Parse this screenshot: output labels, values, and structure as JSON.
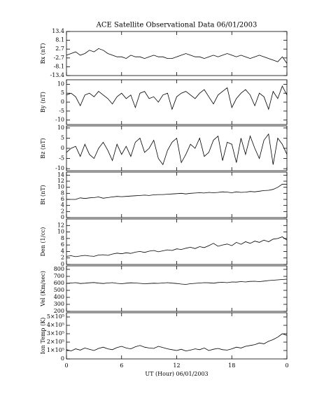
{
  "chart_data": [
    {
      "type": "line",
      "title": "ACE Satellite Observational Data   06/01/2003",
      "ylabel": "Bx (nT)",
      "color": "#000000",
      "x": [
        0,
        0.5,
        1,
        1.5,
        2,
        2.5,
        3,
        3.5,
        4,
        4.5,
        5,
        5.5,
        6,
        6.5,
        7,
        7.5,
        8,
        8.5,
        9,
        9.5,
        10,
        10.5,
        11,
        11.5,
        12,
        12.5,
        13,
        13.5,
        14,
        14.5,
        15,
        15.5,
        16,
        16.5,
        17,
        17.5,
        18,
        18.5,
        19,
        19.5,
        20,
        20.5,
        21,
        21.5,
        22,
        22.5,
        23,
        23.5,
        24
      ],
      "values": [
        -1,
        0,
        1,
        -1,
        0,
        2,
        1,
        3,
        2,
        0,
        -1,
        -2,
        -2,
        -3,
        -1,
        -2,
        -2,
        -3,
        -2,
        -1,
        -2,
        -2,
        -3,
        -3,
        -2,
        -1,
        0,
        -1,
        -2,
        -2,
        -3,
        -2,
        -1,
        -2,
        -1,
        0,
        -1,
        -2,
        -1,
        -2,
        -3,
        -2,
        -1,
        -2,
        -3,
        -4,
        -5,
        -2,
        -6
      ],
      "xlim": [
        0,
        24
      ],
      "ylim": [
        -13.4,
        13.4
      ],
      "yticks": [
        13.4,
        8.1,
        2.7,
        -2.7,
        -8.1,
        -13.4
      ]
    },
    {
      "type": "line",
      "ylabel": "By (nT)",
      "color": "#000000",
      "x": [
        0,
        0.5,
        1,
        1.5,
        2,
        2.5,
        3,
        3.5,
        4,
        4.5,
        5,
        5.5,
        6,
        6.5,
        7,
        7.5,
        8,
        8.5,
        9,
        9.5,
        10,
        10.5,
        11,
        11.5,
        12,
        12.5,
        13,
        13.5,
        14,
        14.5,
        15,
        15.5,
        16,
        16.5,
        17,
        17.5,
        18,
        18.5,
        19,
        19.5,
        20,
        20.5,
        21,
        21.5,
        22,
        22.5,
        23,
        23.5,
        24
      ],
      "values": [
        4,
        5,
        3,
        -2,
        4,
        5,
        3,
        6,
        4,
        2,
        -1,
        3,
        5,
        2,
        4,
        -3,
        5,
        6,
        2,
        3,
        0,
        4,
        5,
        -4,
        3,
        5,
        6,
        4,
        2,
        5,
        7,
        3,
        -1,
        4,
        6,
        8,
        -3,
        2,
        5,
        7,
        4,
        -2,
        5,
        3,
        -4,
        6,
        2,
        9,
        4
      ],
      "xlim": [
        0,
        24
      ],
      "ylim": [
        -12.5,
        12.5
      ],
      "yticks": [
        10,
        5,
        0,
        -5,
        -10
      ]
    },
    {
      "type": "line",
      "ylabel": "Bz (nT)",
      "color": "#000000",
      "x": [
        0,
        0.5,
        1,
        1.5,
        2,
        2.5,
        3,
        3.5,
        4,
        4.5,
        5,
        5.5,
        6,
        6.5,
        7,
        7.5,
        8,
        8.5,
        9,
        9.5,
        10,
        10.5,
        11,
        11.5,
        12,
        12.5,
        13,
        13.5,
        14,
        14.5,
        15,
        15.5,
        16,
        16.5,
        17,
        17.5,
        18,
        18.5,
        19,
        19.5,
        20,
        20.5,
        21,
        21.5,
        22,
        22.5,
        23,
        23.5,
        24
      ],
      "values": [
        -2,
        0,
        1,
        -4,
        2,
        -3,
        -5,
        0,
        3,
        -1,
        -6,
        2,
        -3,
        1,
        -4,
        3,
        5,
        -2,
        0,
        4,
        -5,
        -8,
        -1,
        3,
        5,
        -7,
        -3,
        2,
        0,
        5,
        -4,
        -2,
        4,
        6,
        -6,
        3,
        2,
        -7,
        5,
        -3,
        6,
        0,
        -5,
        4,
        7,
        -8,
        5,
        2,
        -3
      ],
      "xlim": [
        0,
        24
      ],
      "ylim": [
        -11,
        11
      ],
      "yticks": [
        10,
        5,
        0,
        -5,
        -10
      ]
    },
    {
      "type": "line",
      "ylabel": "Bt (nT)",
      "color": "#000000",
      "x": [
        0,
        0.5,
        1,
        1.5,
        2,
        2.5,
        3,
        3.5,
        4,
        4.5,
        5,
        5.5,
        6,
        6.5,
        7,
        7.5,
        8,
        8.5,
        9,
        9.5,
        10,
        10.5,
        11,
        11.5,
        12,
        12.5,
        13,
        13.5,
        14,
        14.5,
        15,
        15.5,
        16,
        16.5,
        17,
        17.5,
        18,
        18.5,
        19,
        19.5,
        20,
        20.5,
        21,
        21.5,
        22,
        22.5,
        23,
        23.5,
        24
      ],
      "values": [
        6,
        6,
        6,
        6.5,
        6.3,
        6.5,
        6.6,
        6.8,
        6.4,
        6.6,
        6.8,
        7,
        6.9,
        7,
        7.1,
        7.2,
        7.3,
        7.4,
        7.3,
        7.5,
        7.6,
        7.6,
        7.7,
        7.8,
        7.9,
        8,
        7.8,
        8,
        8.1,
        8.2,
        8.1,
        8.3,
        8.2,
        8.3,
        8.5,
        8.4,
        8.2,
        8.5,
        8.3,
        8.4,
        8.6,
        8.5,
        8.7,
        8.9,
        9,
        9.3,
        10,
        11,
        11
      ],
      "xlim": [
        0,
        24
      ],
      "ylim": [
        0,
        15
      ],
      "yticks": [
        0,
        2,
        4,
        6,
        8,
        10,
        12,
        14
      ]
    },
    {
      "type": "line",
      "ylabel": "Den (1/cc)",
      "color": "#000000",
      "x": [
        0,
        0.5,
        1,
        1.5,
        2,
        2.5,
        3,
        3.5,
        4,
        4.5,
        5,
        5.5,
        6,
        6.5,
        7,
        7.5,
        8,
        8.5,
        9,
        9.5,
        10,
        10.5,
        11,
        11.5,
        12,
        12.5,
        13,
        13.5,
        14,
        14.5,
        15,
        15.5,
        16,
        16.5,
        17,
        17.5,
        18,
        18.5,
        19,
        19.5,
        20,
        20.5,
        21,
        21.5,
        22,
        22.5,
        23,
        23.5,
        24
      ],
      "values": [
        2.5,
        2.7,
        2.4,
        2.6,
        2.8,
        2.6,
        2.5,
        2.9,
        3,
        2.8,
        3.2,
        3.5,
        3.3,
        3.6,
        3.4,
        3.8,
        4,
        3.7,
        4.1,
        4.3,
        3.9,
        4.2,
        4.5,
        4.3,
        4.8,
        4.6,
        5,
        5.3,
        4.9,
        5.5,
        5.2,
        5.8,
        6.5,
        5.6,
        6,
        6.3,
        5.8,
        6.8,
        6.2,
        7,
        6.5,
        7.2,
        6.8,
        7.5,
        7,
        7.8,
        8,
        8.5,
        7.5
      ],
      "xlim": [
        0,
        24
      ],
      "ylim": [
        0,
        14
      ],
      "yticks": [
        0,
        2,
        4,
        6,
        8,
        10,
        12
      ]
    },
    {
      "type": "line",
      "ylabel": "Vel (Km/sec)",
      "color": "#000000",
      "x": [
        0,
        0.5,
        1,
        1.5,
        2,
        2.5,
        3,
        3.5,
        4,
        4.5,
        5,
        5.5,
        6,
        6.5,
        7,
        7.5,
        8,
        8.5,
        9,
        9.5,
        10,
        10.5,
        11,
        11.5,
        12,
        12.5,
        13,
        13.5,
        14,
        14.5,
        15,
        15.5,
        16,
        16.5,
        17,
        17.5,
        18,
        18.5,
        19,
        19.5,
        20,
        20.5,
        21,
        21.5,
        22,
        22.5,
        23,
        23.5,
        24
      ],
      "values": [
        600,
        605,
        610,
        598,
        602,
        608,
        612,
        603,
        598,
        605,
        610,
        600,
        595,
        602,
        608,
        605,
        600,
        595,
        598,
        602,
        600,
        605,
        610,
        603,
        598,
        590,
        585,
        595,
        600,
        605,
        610,
        608,
        602,
        612,
        615,
        610,
        620,
        618,
        625,
        620,
        628,
        630,
        625,
        632,
        640,
        645,
        650,
        655,
        660
      ],
      "xlim": [
        0,
        24
      ],
      "ylim": [
        200,
        850
      ],
      "yticks": [
        200,
        300,
        400,
        500,
        600,
        700,
        800
      ]
    },
    {
      "type": "line",
      "ylabel": "Ion Temp (K)",
      "xlabel": "UT (Hour)  06/01/2003",
      "color": "#000000",
      "x": [
        0,
        0.5,
        1,
        1.5,
        2,
        2.5,
        3,
        3.5,
        4,
        4.5,
        5,
        5.5,
        6,
        6.5,
        7,
        7.5,
        8,
        8.5,
        9,
        9.5,
        10,
        10.5,
        11,
        11.5,
        12,
        12.5,
        13,
        13.5,
        14,
        14.5,
        15,
        15.5,
        16,
        16.5,
        17,
        17.5,
        18,
        18.5,
        19,
        19.5,
        20,
        20.5,
        21,
        21.5,
        22,
        22.5,
        23,
        23.5,
        24
      ],
      "values": [
        110000,
        95000,
        120000,
        105000,
        130000,
        115000,
        100000,
        125000,
        140000,
        120000,
        110000,
        135000,
        150000,
        130000,
        120000,
        145000,
        160000,
        140000,
        130000,
        125000,
        150000,
        135000,
        120000,
        110000,
        100000,
        115000,
        95000,
        105000,
        120000,
        110000,
        130000,
        100000,
        115000,
        125000,
        110000,
        105000,
        120000,
        140000,
        130000,
        150000,
        160000,
        170000,
        190000,
        180000,
        210000,
        230000,
        260000,
        300000,
        280000
      ],
      "xlim": [
        0,
        24
      ],
      "ylim": [
        0,
        550000
      ],
      "yticks": [
        0,
        {
          "value": 100000,
          "label": "1×10⁵"
        },
        {
          "value": 200000,
          "label": "2×10⁵"
        },
        {
          "value": 300000,
          "label": "3×10⁵"
        },
        {
          "value": 400000,
          "label": "4×10⁵"
        },
        {
          "value": 500000,
          "label": "5×10⁵"
        }
      ],
      "xticks": [
        0,
        6,
        12,
        18,
        {
          "value": 24,
          "label": "0"
        }
      ]
    }
  ]
}
